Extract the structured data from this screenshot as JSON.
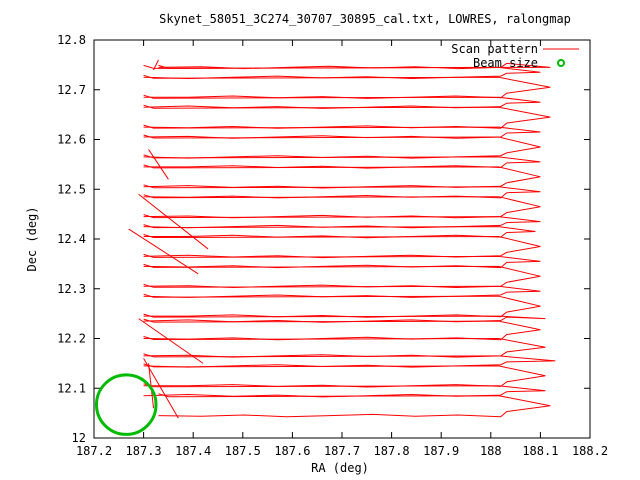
{
  "chart_data": {
    "type": "line",
    "title": "Skynet_58051_3C274_30707_30895_cal.txt, LOWRES, ralongmap",
    "xlabel": "RA (deg)",
    "ylabel": "Dec (deg)",
    "xlim": [
      187.2,
      188.2
    ],
    "ylim": [
      12.0,
      12.8
    ],
    "xticks": [
      "187.2",
      "187.3",
      "187.4",
      "187.5",
      "187.6",
      "187.7",
      "187.8",
      "187.9",
      "188",
      "188.1",
      "188.2"
    ],
    "yticks": [
      "12",
      "12.1",
      "12.2",
      "12.3",
      "12.4",
      "12.5",
      "12.6",
      "12.7",
      "12.8"
    ],
    "grid": false,
    "legend_position": "top-right",
    "series": [
      {
        "name": "Scan pattern",
        "color": "#ff0000",
        "rows": [
          {
            "dec": 12.045,
            "x_start": 187.33,
            "x_end": 188.02,
            "x_turn": 188.12,
            "dec_next": 12.085
          },
          {
            "dec": 12.085,
            "x_start": 187.3,
            "x_end": 188.02,
            "x_turn": 188.11,
            "dec_next": 12.105
          },
          {
            "dec": 12.105,
            "x_start": 187.3,
            "x_end": 188.02,
            "x_turn": 188.11,
            "dec_next": 12.145
          },
          {
            "dec": 12.145,
            "x_start": 187.3,
            "x_end": 188.02,
            "x_turn": 188.13,
            "dec_next": 12.165
          },
          {
            "dec": 12.165,
            "x_start": 187.3,
            "x_end": 188.02,
            "x_turn": 188.11,
            "dec_next": 12.2
          },
          {
            "dec": 12.2,
            "x_start": 187.3,
            "x_end": 188.02,
            "x_turn": 188.1,
            "dec_next": 12.235
          },
          {
            "dec": 12.235,
            "x_start": 187.3,
            "x_end": 188.02,
            "x_turn": 188.11,
            "dec_next": 12.245
          },
          {
            "dec": 12.245,
            "x_start": 187.3,
            "x_end": 188.02,
            "x_turn": 188.1,
            "dec_next": 12.285
          },
          {
            "dec": 12.285,
            "x_start": 187.3,
            "x_end": 188.02,
            "x_turn": 188.1,
            "dec_next": 12.305
          },
          {
            "dec": 12.305,
            "x_start": 187.3,
            "x_end": 188.02,
            "x_turn": 188.1,
            "dec_next": 12.345
          },
          {
            "dec": 12.345,
            "x_start": 187.3,
            "x_end": 188.02,
            "x_turn": 188.1,
            "dec_next": 12.365
          },
          {
            "dec": 12.365,
            "x_start": 187.3,
            "x_end": 188.02,
            "x_turn": 188.1,
            "dec_next": 12.405
          },
          {
            "dec": 12.405,
            "x_start": 187.3,
            "x_end": 188.02,
            "x_turn": 188.09,
            "dec_next": 12.425
          },
          {
            "dec": 12.425,
            "x_start": 187.3,
            "x_end": 188.02,
            "x_turn": 188.1,
            "dec_next": 12.445
          },
          {
            "dec": 12.445,
            "x_start": 187.3,
            "x_end": 188.02,
            "x_turn": 188.1,
            "dec_next": 12.485
          },
          {
            "dec": 12.485,
            "x_start": 187.3,
            "x_end": 188.02,
            "x_turn": 188.1,
            "dec_next": 12.505
          },
          {
            "dec": 12.505,
            "x_start": 187.3,
            "x_end": 188.02,
            "x_turn": 188.1,
            "dec_next": 12.545
          },
          {
            "dec": 12.545,
            "x_start": 187.3,
            "x_end": 188.02,
            "x_turn": 188.1,
            "dec_next": 12.565
          },
          {
            "dec": 12.565,
            "x_start": 187.3,
            "x_end": 188.02,
            "x_turn": 188.1,
            "dec_next": 12.605
          },
          {
            "dec": 12.605,
            "x_start": 187.3,
            "x_end": 188.02,
            "x_turn": 188.1,
            "dec_next": 12.625
          },
          {
            "dec": 12.625,
            "x_start": 187.3,
            "x_end": 188.02,
            "x_turn": 188.12,
            "dec_next": 12.665
          },
          {
            "dec": 12.665,
            "x_start": 187.3,
            "x_end": 188.02,
            "x_turn": 188.1,
            "dec_next": 12.685
          },
          {
            "dec": 12.685,
            "x_start": 187.3,
            "x_end": 188.02,
            "x_turn": 188.12,
            "dec_next": 12.725
          },
          {
            "dec": 12.725,
            "x_start": 187.3,
            "x_end": 188.02,
            "x_turn": 188.1,
            "dec_next": 12.745
          },
          {
            "dec": 12.745,
            "x_start": 187.33,
            "x_end": 188.02,
            "x_turn": 188.12,
            "dec_next": 12.745
          }
        ],
        "spikes": [
          [
            187.35,
            12.52,
            187.31,
            12.58
          ],
          [
            187.29,
            12.49,
            187.43,
            12.38
          ],
          [
            187.27,
            12.42,
            187.41,
            12.33
          ],
          [
            187.29,
            12.24,
            187.42,
            12.15
          ],
          [
            187.3,
            12.16,
            187.37,
            12.04
          ],
          [
            187.31,
            12.15,
            187.32,
            12.06
          ],
          [
            187.33,
            12.76,
            187.32,
            12.74
          ]
        ]
      },
      {
        "name": "Beam size",
        "color": "#00bb00",
        "center": [
          187.265,
          12.067
        ],
        "radius_deg": 0.06
      }
    ]
  }
}
